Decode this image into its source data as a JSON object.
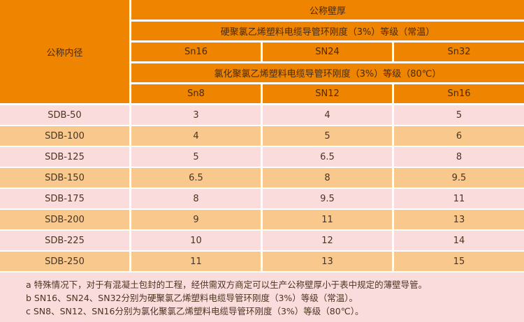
{
  "header": {
    "row_label": "公称内径",
    "top": "公称壁厚",
    "group1": "硬聚氯乙烯塑料电缆导管环刚度（3%）等级（常温）",
    "group1_cols": [
      "Sn16",
      "SN24",
      "Sn32"
    ],
    "group2": "氯化聚氯乙烯塑料电缆导管环刚度（3%）等级（80℃）",
    "group2_cols": [
      "Sn8",
      "SN12",
      "Sn16"
    ]
  },
  "rows": [
    [
      "SDB-50",
      "3",
      "4",
      "5"
    ],
    [
      "SDB-100",
      "4",
      "5",
      "6"
    ],
    [
      "SDB-125",
      "5",
      "6.5",
      "8"
    ],
    [
      "SDB-150",
      "6.5",
      "8",
      "9.5"
    ],
    [
      "SDB-175",
      "8",
      "9.5",
      "11"
    ],
    [
      "SDB-200",
      "9",
      "11",
      "13"
    ],
    [
      "SDB-225",
      "10",
      "12",
      "14"
    ],
    [
      "SDB-250",
      "11",
      "13",
      "15"
    ]
  ],
  "notes": [
    "a 特殊情况下，对于有混凝土包封的工程，经供需双方商定可以生产公称壁厚小于表中规定的薄壁导管。",
    "b SN16、SN24、SN32分别为硬聚氯乙烯塑料电缆导管环刚度（3%）等级（常温）。",
    "c SN8、SN12、SN16分别为氯化聚氯乙烯塑料电缆导管环刚度（3%）等级（80℃）。"
  ],
  "colors": {
    "header": "#EE8400",
    "row_odd": "#FADCDC",
    "row_even": "#F8C88C"
  }
}
